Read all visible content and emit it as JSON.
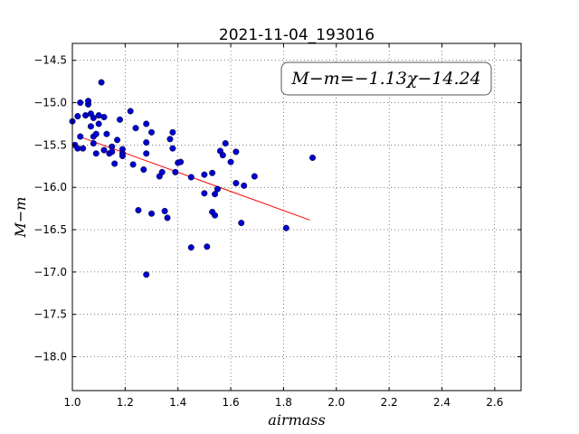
{
  "chart_data": {
    "type": "scatter",
    "title": "2021-11-04_193016",
    "xlabel": "airmass",
    "ylabel": "M−m",
    "xlim": [
      1.0,
      2.7
    ],
    "ylim": [
      -18.4,
      -14.3
    ],
    "x_ticks": [
      "1.0",
      "1.2",
      "1.4",
      "1.6",
      "1.8",
      "2.0",
      "2.2",
      "2.4",
      "2.6"
    ],
    "x_tick_values": [
      1.0,
      1.2,
      1.4,
      1.6,
      1.8,
      2.0,
      2.2,
      2.4,
      2.6
    ],
    "y_ticks": [
      "−14.5",
      "−15.0",
      "−15.5",
      "−16.0",
      "−16.5",
      "−17.0",
      "−17.5",
      "−18.0"
    ],
    "y_tick_values": [
      -14.5,
      -15.0,
      -15.5,
      -16.0,
      -16.5,
      -17.0,
      -17.5,
      -18.0
    ],
    "grid": true,
    "annotation": "M−m=−1.13χ−14.24",
    "annotation_placement": "top-right",
    "colors": {
      "points": "#0000cc",
      "fit": "#ff0000"
    },
    "fit": {
      "slope": -1.13,
      "intercept": -14.24,
      "x_range": [
        1.02,
        1.9
      ]
    },
    "points": [
      [
        1.0,
        -15.22
      ],
      [
        1.01,
        -15.5
      ],
      [
        1.02,
        -15.16
      ],
      [
        1.02,
        -15.54
      ],
      [
        1.03,
        -15.4
      ],
      [
        1.03,
        -15.0
      ],
      [
        1.04,
        -15.54
      ],
      [
        1.05,
        -15.15
      ],
      [
        1.06,
        -15.02
      ],
      [
        1.06,
        -14.98
      ],
      [
        1.07,
        -15.13
      ],
      [
        1.07,
        -15.28
      ],
      [
        1.08,
        -15.18
      ],
      [
        1.08,
        -15.4
      ],
      [
        1.08,
        -15.48
      ],
      [
        1.09,
        -15.37
      ],
      [
        1.09,
        -15.6
      ],
      [
        1.1,
        -15.15
      ],
      [
        1.1,
        -15.25
      ],
      [
        1.11,
        -14.76
      ],
      [
        1.12,
        -15.17
      ],
      [
        1.12,
        -15.56
      ],
      [
        1.13,
        -15.37
      ],
      [
        1.14,
        -15.6
      ],
      [
        1.15,
        -15.52
      ],
      [
        1.15,
        -15.58
      ],
      [
        1.16,
        -15.72
      ],
      [
        1.17,
        -15.44
      ],
      [
        1.18,
        -15.2
      ],
      [
        1.19,
        -15.6
      ],
      [
        1.19,
        -15.63
      ],
      [
        1.19,
        -15.55
      ],
      [
        1.22,
        -15.1
      ],
      [
        1.23,
        -15.73
      ],
      [
        1.24,
        -15.3
      ],
      [
        1.25,
        -16.27
      ],
      [
        1.27,
        -15.79
      ],
      [
        1.28,
        -15.25
      ],
      [
        1.28,
        -15.47
      ],
      [
        1.28,
        -15.6
      ],
      [
        1.28,
        -17.03
      ],
      [
        1.3,
        -15.35
      ],
      [
        1.3,
        -16.31
      ],
      [
        1.33,
        -15.87
      ],
      [
        1.34,
        -15.82
      ],
      [
        1.35,
        -16.28
      ],
      [
        1.36,
        -16.36
      ],
      [
        1.37,
        -15.43
      ],
      [
        1.38,
        -15.35
      ],
      [
        1.38,
        -15.54
      ],
      [
        1.39,
        -15.82
      ],
      [
        1.4,
        -15.71
      ],
      [
        1.41,
        -15.7
      ],
      [
        1.45,
        -15.88
      ],
      [
        1.45,
        -16.71
      ],
      [
        1.5,
        -15.85
      ],
      [
        1.5,
        -16.07
      ],
      [
        1.51,
        -16.7
      ],
      [
        1.53,
        -15.83
      ],
      [
        1.53,
        -16.29
      ],
      [
        1.54,
        -16.08
      ],
      [
        1.54,
        -16.33
      ],
      [
        1.55,
        -16.02
      ],
      [
        1.56,
        -15.57
      ],
      [
        1.57,
        -15.62
      ],
      [
        1.58,
        -15.48
      ],
      [
        1.6,
        -15.7
      ],
      [
        1.62,
        -15.58
      ],
      [
        1.62,
        -15.95
      ],
      [
        1.64,
        -16.42
      ],
      [
        1.65,
        -15.98
      ],
      [
        1.69,
        -15.87
      ],
      [
        1.81,
        -16.48
      ],
      [
        1.91,
        -15.65
      ]
    ]
  }
}
